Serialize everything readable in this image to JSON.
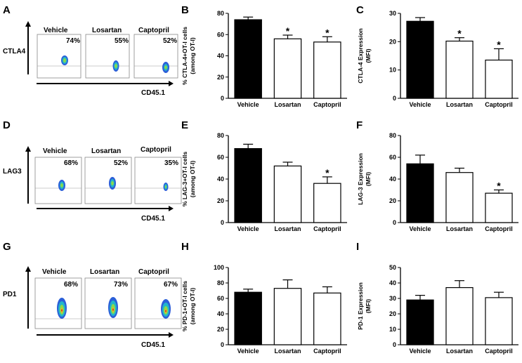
{
  "panel_letters": [
    "A",
    "B",
    "C",
    "D",
    "E",
    "F",
    "G",
    "H",
    "I"
  ],
  "flow_panels": [
    {
      "marker": "CTLA4",
      "xaxis": "CD45.1",
      "groups": [
        "Vehicle",
        "Losartan",
        "Captopril"
      ],
      "percents": [
        "74%",
        "55%",
        "52%"
      ]
    },
    {
      "marker": "LAG3",
      "xaxis": "CD45.1",
      "groups": [
        "Vehicle",
        "Losartan",
        "Captopril"
      ],
      "percents": [
        "68%",
        "52%",
        "35%"
      ]
    },
    {
      "marker": "PD1",
      "xaxis": "CD45.1",
      "groups": [
        "Vehicle",
        "Losartan",
        "Captopril"
      ],
      "percents": [
        "68%",
        "73%",
        "67%"
      ]
    }
  ],
  "colors": {
    "vehicle_bar": "#000000",
    "treated_bar": "#ffffff",
    "axis": "#000000"
  },
  "chart_data": [
    {
      "id": "B",
      "type": "bar",
      "ylabel_line1": "% CTLA-4+OT-I cells",
      "ylabel_line2": "(among OT-I)",
      "ylim": [
        0,
        80
      ],
      "yticks": [
        "0",
        "20",
        "40",
        "60",
        "80"
      ],
      "categories": [
        "Vehicle",
        "Losartan",
        "Captopril"
      ],
      "values": [
        74,
        56,
        53
      ],
      "errors": [
        2.5,
        3.5,
        5
      ],
      "significance": [
        "",
        "*",
        "*"
      ]
    },
    {
      "id": "C",
      "type": "bar",
      "ylabel_line1": "CTLA-4 Expression",
      "ylabel_line2": "(MFI)",
      "ylim": [
        0,
        30
      ],
      "yticks": [
        "0",
        "10",
        "20",
        "30"
      ],
      "categories": [
        "Vehicle",
        "Losartan",
        "Captopril"
      ],
      "values": [
        27.2,
        20.2,
        13.5
      ],
      "errors": [
        1.3,
        1.2,
        4.0
      ],
      "significance": [
        "",
        "*",
        "*"
      ]
    },
    {
      "id": "E",
      "type": "bar",
      "ylabel_line1": "% LAG-3+OT-I cells",
      "ylabel_line2": "(among OT-I)",
      "ylim": [
        0,
        80
      ],
      "yticks": [
        "0",
        "20",
        "40",
        "60",
        "80"
      ],
      "categories": [
        "Vehicle",
        "Losartan",
        "Captopril"
      ],
      "values": [
        68,
        52,
        36
      ],
      "errors": [
        4,
        3.5,
        6
      ],
      "significance": [
        "",
        "",
        "*"
      ]
    },
    {
      "id": "F",
      "type": "bar",
      "ylabel_line1": "LAG-3 Expression",
      "ylabel_line2": "(MFI)",
      "ylim": [
        0,
        80
      ],
      "yticks": [
        "0",
        "20",
        "40",
        "60",
        "80"
      ],
      "categories": [
        "Vehicle",
        "Losartan",
        "Captopril"
      ],
      "values": [
        54,
        46,
        27
      ],
      "errors": [
        8,
        4,
        3
      ],
      "significance": [
        "",
        "",
        "*"
      ]
    },
    {
      "id": "H",
      "type": "bar",
      "ylabel_line1": "% PD-1+OT-I cells",
      "ylabel_line2": "(among OT-I)",
      "ylim": [
        0,
        100
      ],
      "yticks": [
        "0",
        "20",
        "40",
        "60",
        "80",
        "100"
      ],
      "categories": [
        "Vehicle",
        "Losartan",
        "Captopril"
      ],
      "values": [
        68,
        73,
        67
      ],
      "errors": [
        4,
        11,
        8
      ],
      "significance": [
        "",
        "",
        ""
      ]
    },
    {
      "id": "I",
      "type": "bar",
      "ylabel_line1": "PD-1 Expression",
      "ylabel_line2": "(MFI)",
      "ylim": [
        0,
        50
      ],
      "yticks": [
        "0",
        "10",
        "20",
        "30",
        "40",
        "50"
      ],
      "categories": [
        "Vehicle",
        "Losartan",
        "Captopril"
      ],
      "values": [
        29,
        37,
        30.5
      ],
      "errors": [
        3,
        4.5,
        3.5
      ],
      "significance": [
        "",
        "",
        ""
      ]
    }
  ]
}
